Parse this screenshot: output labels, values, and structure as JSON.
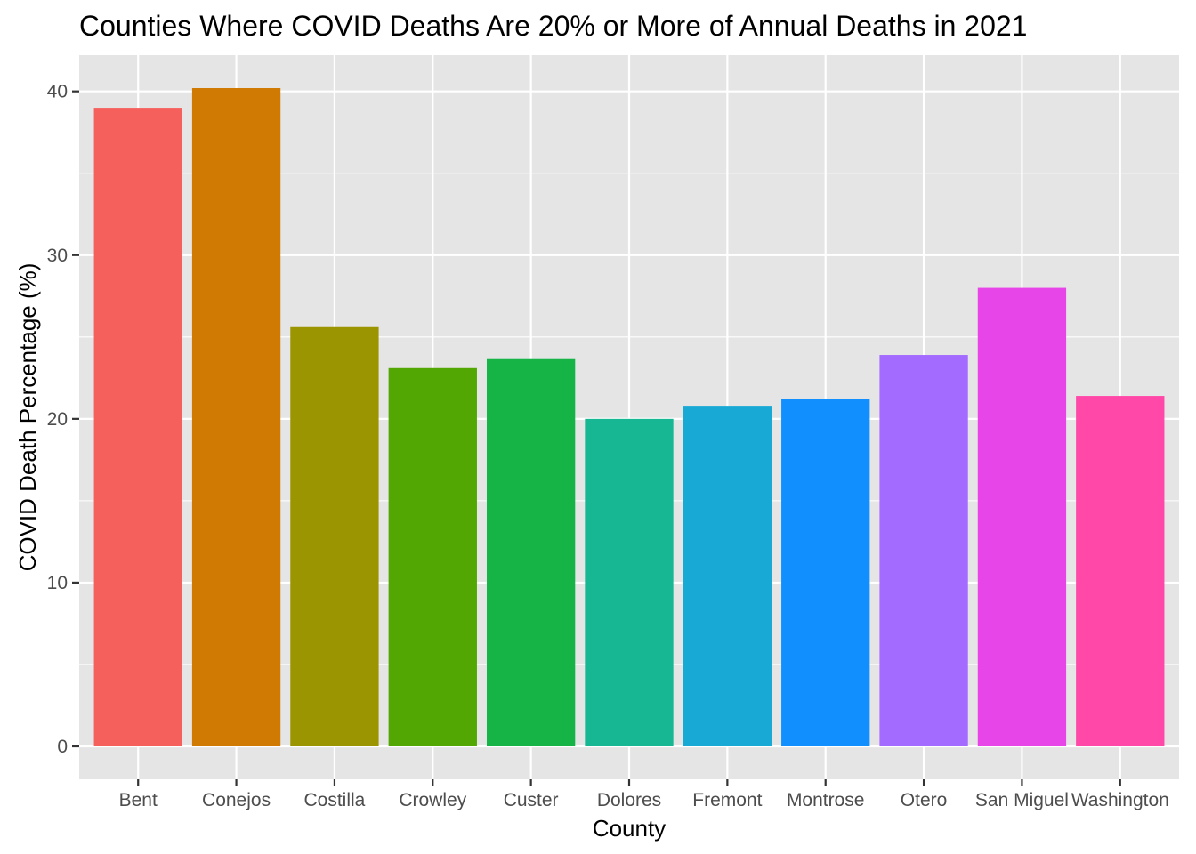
{
  "chart_data": {
    "type": "bar",
    "title": "Counties Where COVID Deaths Are 20% or More of Annual Deaths in 2021",
    "xlabel": "County",
    "ylabel": "COVID Death Percentage (%)",
    "categories": [
      "Bent",
      "Conejos",
      "Costilla",
      "Crowley",
      "Custer",
      "Dolores",
      "Fremont",
      "Montrose",
      "Otero",
      "San Miguel",
      "Washington"
    ],
    "values": [
      39.0,
      40.2,
      25.6,
      23.1,
      23.7,
      20.0,
      20.8,
      21.2,
      23.9,
      28.0,
      21.4
    ],
    "colors": [
      "#F8766D",
      "#D39200",
      "#93AA00",
      "#00BA38",
      "#00C19F",
      "#00B9E3",
      "#619CFF",
      "#DB72FB",
      "#FF61C3",
      "#00BA38",
      "#FF61C3"
    ],
    "bar_colors": [
      "#F5605D",
      "#D07A04",
      "#9C9502",
      "#53A703",
      "#16B446",
      "#18B794",
      "#18AAD5",
      "#128FFF",
      "#A36BFF",
      "#E745E8",
      "#FF48A8"
    ],
    "yticks": [
      0,
      10,
      20,
      30,
      40
    ],
    "ylim": [
      -2.01,
      42.21
    ],
    "grid": true,
    "panel_background": "#E5E5E5",
    "grid_color": "#FFFFFF",
    "legend": "none"
  }
}
